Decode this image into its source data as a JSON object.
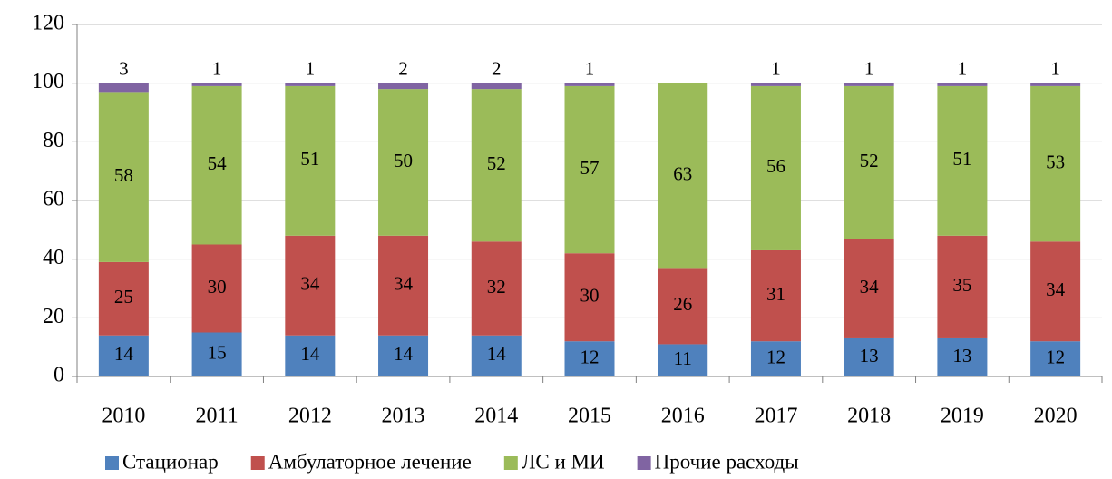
{
  "chart_data": {
    "type": "stacked_bar",
    "categories": [
      "2010",
      "2011",
      "2012",
      "2013",
      "2014",
      "2015",
      "2016",
      "2017",
      "2018",
      "2019",
      "2020"
    ],
    "series": [
      {
        "name": "Стационар",
        "color": "#4f81bd",
        "values": [
          14,
          15,
          14,
          14,
          14,
          12,
          11,
          12,
          13,
          13,
          12
        ]
      },
      {
        "name": "Амбулаторное лечение",
        "color": "#c0504d",
        "values": [
          25,
          30,
          34,
          34,
          32,
          30,
          26,
          31,
          34,
          35,
          34
        ]
      },
      {
        "name": "ЛС и МИ",
        "color": "#9bbb59",
        "values": [
          58,
          54,
          51,
          50,
          52,
          57,
          63,
          56,
          52,
          51,
          53
        ]
      },
      {
        "name": "Прочие расходы",
        "color": "#8064a2",
        "values": [
          3,
          1,
          1,
          2,
          2,
          1,
          null,
          1,
          1,
          1,
          1
        ]
      }
    ],
    "ylim": [
      0,
      120
    ],
    "yticks": [
      0,
      20,
      40,
      60,
      80,
      100,
      120
    ],
    "grid": true,
    "legend": "bottom"
  }
}
